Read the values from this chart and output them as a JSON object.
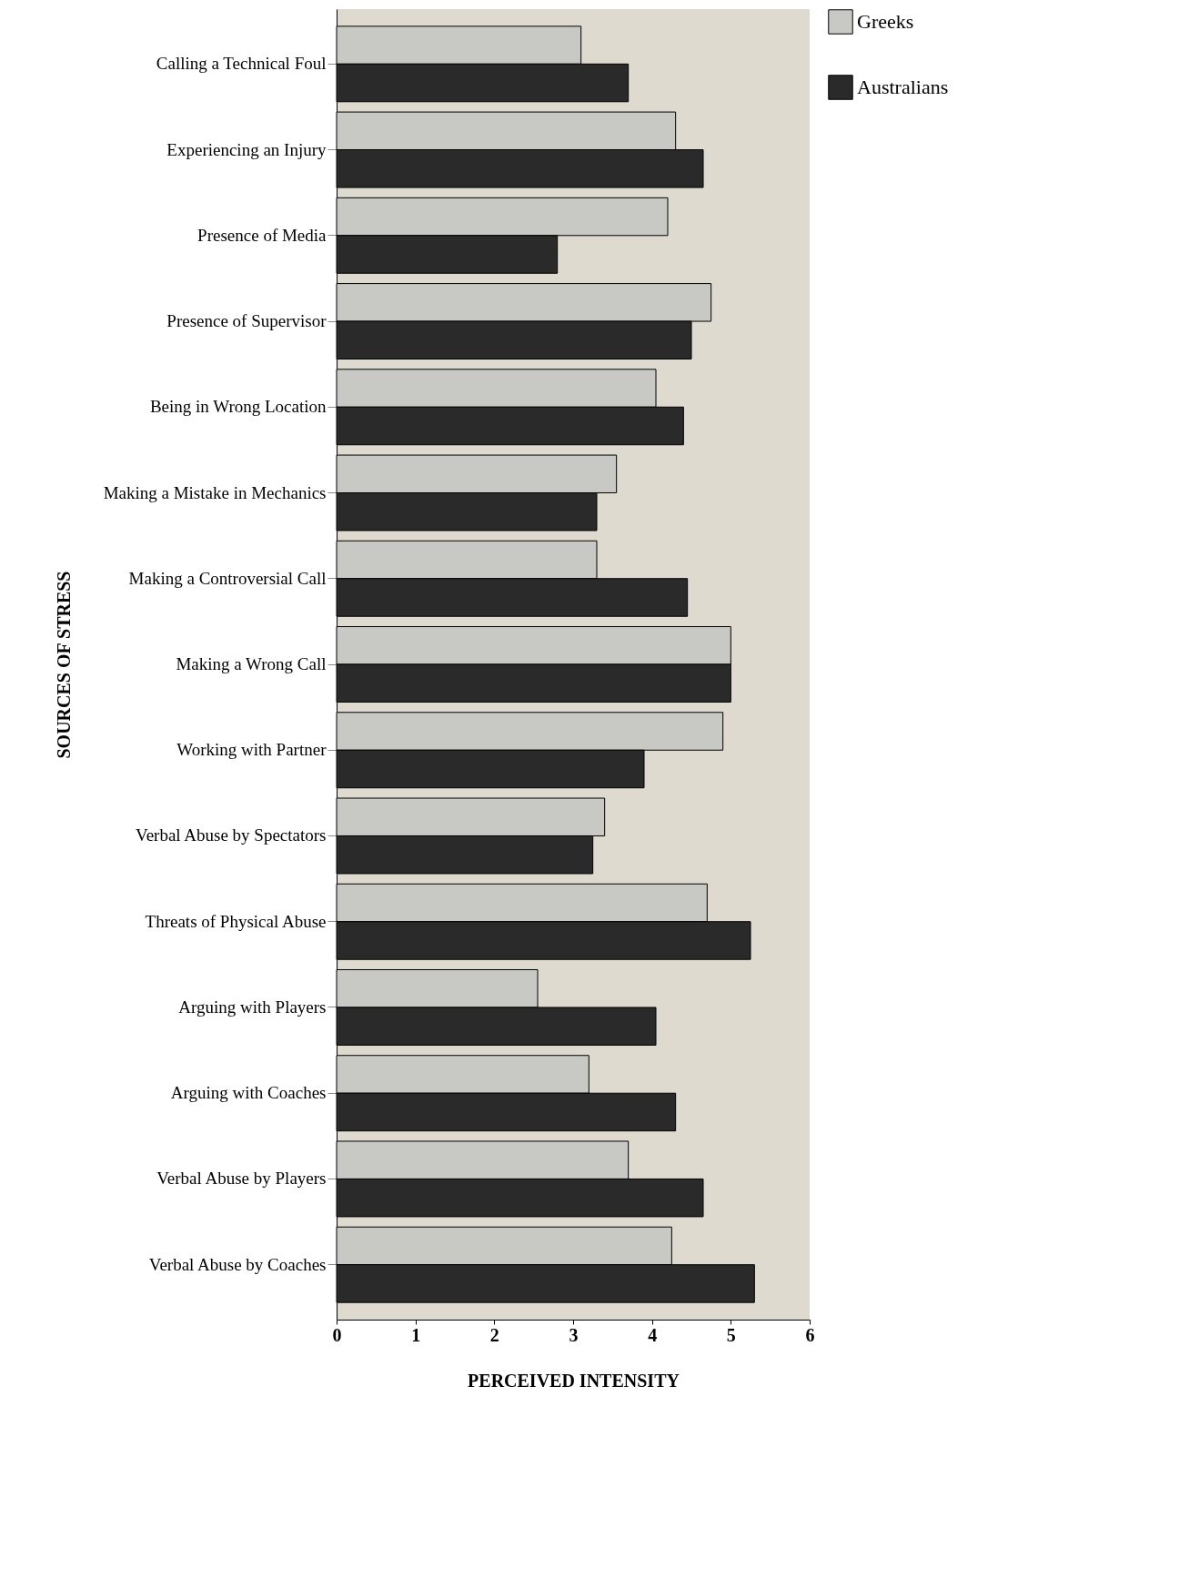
{
  "chart_data": {
    "type": "bar",
    "orientation": "horizontal",
    "xlabel": "PERCEIVED INTENSITY",
    "ylabel": "SOURCES OF STRESS",
    "categories": [
      "Calling a Technical Foul",
      "Experiencing an Injury",
      "Presence of Media",
      "Presence of Supervisor",
      "Being in Wrong Location",
      "Making a Mistake in Mechanics",
      "Making a Controversial Call",
      "Making a Wrong Call",
      "Working with Partner",
      "Verbal Abuse by Spectators",
      "Threats of Physical Abuse",
      "Arguing with Players",
      "Arguing with Coaches",
      "Verbal Abuse by Players",
      "Verbal Abuse by Coaches"
    ],
    "series": [
      {
        "name": "Greeks",
        "color": "#c8c8c4",
        "values": [
          3.1,
          4.3,
          4.2,
          4.75,
          4.05,
          3.55,
          3.3,
          5.0,
          4.9,
          3.4,
          4.7,
          2.55,
          3.2,
          3.7,
          4.25
        ]
      },
      {
        "name": "Australians",
        "color": "#2a2a2a",
        "values": [
          3.7,
          4.65,
          2.8,
          4.5,
          4.4,
          3.3,
          4.45,
          5.0,
          3.9,
          3.25,
          5.25,
          4.05,
          4.3,
          4.65,
          5.3
        ]
      }
    ],
    "xlim": [
      0,
      6
    ],
    "xticks": [
      0,
      1,
      2,
      3,
      4,
      5,
      6
    ],
    "legend": "right"
  }
}
